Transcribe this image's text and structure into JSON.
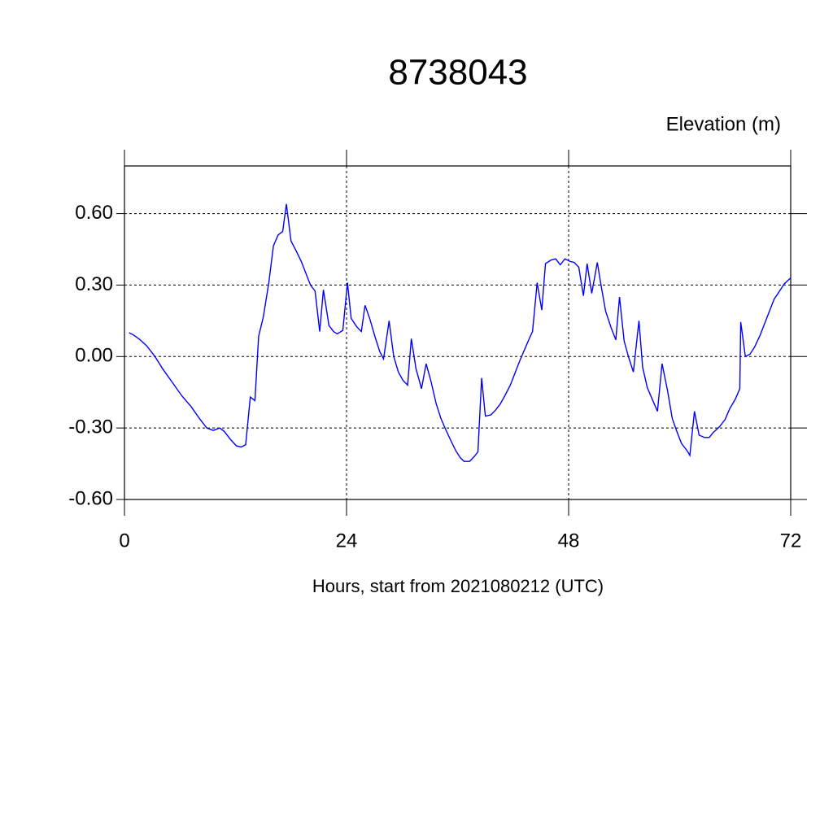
{
  "chart_data": {
    "type": "line",
    "title": "8738043",
    "y_label": "Elevation (m)",
    "x_label": "Hours, start from 2021080212 (UTC)",
    "xlim": [
      0,
      72
    ],
    "ylim": [
      -0.6,
      0.8
    ],
    "xticks": [
      0,
      24,
      48,
      72
    ],
    "yticks": [
      {
        "value": -0.6,
        "label": "-0.60"
      },
      {
        "value": -0.3,
        "label": "-0.30"
      },
      {
        "value": 0,
        "label": "0.00"
      },
      {
        "value": 0.3,
        "label": "0.30"
      },
      {
        "value": 0.6,
        "label": "0.60"
      }
    ],
    "grid": true,
    "series": [
      {
        "color": "#0000ff",
        "x": [
          0.5,
          1.0,
          1.7,
          2.4,
          3.3,
          4.1,
          5.2,
          6.2,
          7.2,
          8.1,
          8.9,
          9.6,
          10.3,
          10.8,
          11.5,
          12.1,
          12.6,
          13.1,
          13.6,
          14.1,
          14.5,
          15.0,
          15.6,
          16.1,
          16.6,
          17.1,
          17.5,
          18.0,
          18.6,
          19.1,
          19.6,
          20.1,
          20.6,
          21.1,
          21.5,
          22.1,
          22.6,
          23.0,
          23.6,
          24.1,
          24.5,
          25.1,
          25.6,
          26.0,
          26.5,
          27.1,
          27.6,
          28.0,
          28.6,
          29.1,
          29.6,
          30.1,
          30.6,
          31.0,
          31.5,
          32.1,
          32.6,
          33.1,
          33.7,
          34.2,
          34.7,
          35.3,
          35.8,
          36.3,
          36.7,
          37.3,
          37.8,
          38.2,
          38.6,
          39.0,
          39.6,
          40.1,
          40.6,
          41.1,
          41.7,
          42.2,
          42.7,
          43.3,
          43.8,
          44.1,
          44.6,
          45.1,
          45.5,
          46.1,
          46.6,
          47.1,
          47.6,
          48.1,
          48.6,
          49.1,
          49.6,
          50.0,
          50.5,
          51.1,
          51.5,
          52.0,
          52.6,
          53.1,
          53.5,
          54.0,
          54.5,
          55.0,
          55.6,
          56.0,
          56.5,
          57.1,
          57.6,
          58.1,
          58.7,
          59.2,
          59.7,
          60.2,
          60.8,
          61.1,
          61.6,
          62.1,
          62.7,
          63.2,
          63.6,
          64.3,
          64.9,
          65.4,
          66.0,
          66.5,
          66.6,
          67.1,
          67.6,
          68.1,
          68.7,
          69.2,
          69.7,
          70.2,
          70.8,
          71.3,
          72.0
        ],
        "values": [
          0.1,
          0.09,
          0.07,
          0.045,
          0.0,
          -0.05,
          -0.11,
          -0.165,
          -0.21,
          -0.26,
          -0.3,
          -0.31,
          -0.3,
          -0.315,
          -0.35,
          -0.375,
          -0.38,
          -0.37,
          -0.17,
          -0.185,
          0.085,
          0.165,
          0.31,
          0.465,
          0.51,
          0.525,
          0.64,
          0.485,
          0.44,
          0.4,
          0.35,
          0.3,
          0.275,
          0.105,
          0.28,
          0.13,
          0.105,
          0.095,
          0.11,
          0.31,
          0.16,
          0.125,
          0.105,
          0.215,
          0.16,
          0.08,
          0.02,
          -0.01,
          0.15,
          0.0,
          -0.065,
          -0.1,
          -0.12,
          0.075,
          -0.05,
          -0.135,
          -0.03,
          -0.1,
          -0.2,
          -0.26,
          -0.305,
          -0.355,
          -0.395,
          -0.425,
          -0.44,
          -0.44,
          -0.42,
          -0.4,
          -0.09,
          -0.25,
          -0.245,
          -0.225,
          -0.2,
          -0.165,
          -0.12,
          -0.07,
          -0.02,
          0.035,
          0.08,
          0.105,
          0.31,
          0.195,
          0.39,
          0.405,
          0.41,
          0.385,
          0.41,
          0.4,
          0.395,
          0.375,
          0.255,
          0.39,
          0.265,
          0.395,
          0.3,
          0.19,
          0.12,
          0.07,
          0.25,
          0.065,
          -0.005,
          -0.065,
          0.15,
          -0.045,
          -0.13,
          -0.185,
          -0.23,
          -0.03,
          -0.145,
          -0.26,
          -0.315,
          -0.365,
          -0.395,
          -0.415,
          -0.23,
          -0.33,
          -0.34,
          -0.34,
          -0.32,
          -0.295,
          -0.265,
          -0.22,
          -0.18,
          -0.135,
          0.145,
          0.0,
          0.01,
          0.04,
          0.09,
          0.14,
          0.19,
          0.24,
          0.275,
          0.305,
          0.33
        ]
      }
    ]
  }
}
